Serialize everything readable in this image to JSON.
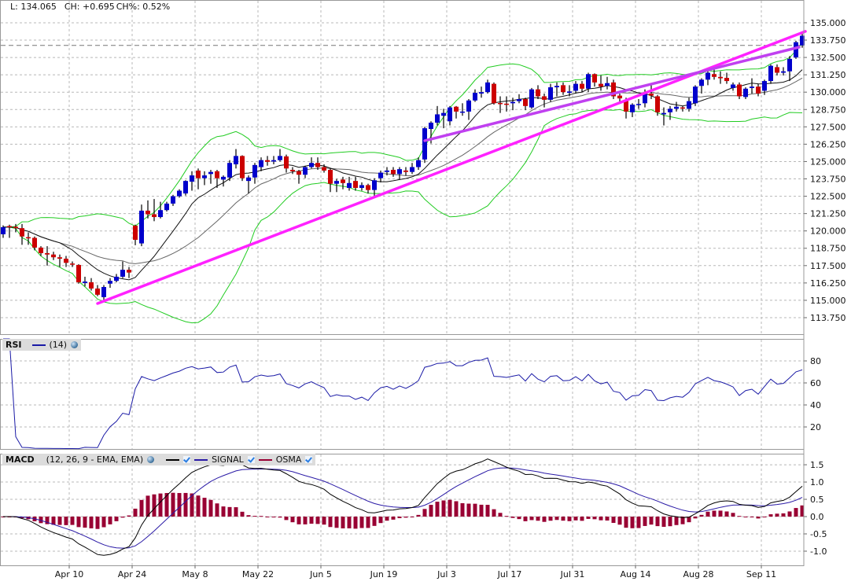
{
  "header": {
    "last": "L: 134.065",
    "change": "CH: +0.695",
    "change_pct": "CH%: 0.52%"
  },
  "rsi_legend": {
    "name": "RSI",
    "params": "(14)"
  },
  "macd_legend": {
    "name": "MACD",
    "params": "(12, 26, 9 - EMA, EMA)",
    "signal": "SIGNAL",
    "osma": "OSMA"
  },
  "colors": {
    "up": "#0000cc",
    "down": "#cc0000",
    "wick": "#000000",
    "bollinger": "#22cc22",
    "sma_fast": "#111111",
    "sma_slow": "#666666",
    "trendline_1": "#ff22ff",
    "trendline_2": "#c040f0",
    "rsi": "#1a1aa6",
    "macd": "#000000",
    "signal": "#2a1aa6",
    "osma": "#990033",
    "grid": "#b8b8b8",
    "frame": "#999999"
  },
  "chart_data": [
    {
      "type": "candlestick",
      "title": "",
      "x_ticks": [
        {
          "label": "Apr 10",
          "index": 10
        },
        {
          "label": "Apr 24",
          "index": 20
        },
        {
          "label": "May 8",
          "index": 30
        },
        {
          "label": "May 22",
          "index": 40
        },
        {
          "label": "Jun 5",
          "index": 50
        },
        {
          "label": "Jun 19",
          "index": 60
        },
        {
          "label": "Jul 3",
          "index": 70
        },
        {
          "label": "Jul 17",
          "index": 80
        },
        {
          "label": "Jul 31",
          "index": 90
        },
        {
          "label": "Aug 14",
          "index": 100
        },
        {
          "label": "Aug 28",
          "index": 110
        },
        {
          "label": "Sep 11",
          "index": 120
        }
      ],
      "y_ticks": [
        "135.000",
        "133.750",
        "132.500",
        "131.250",
        "130.000",
        "128.750",
        "127.500",
        "126.250",
        "125.000",
        "123.750",
        "122.500",
        "121.250",
        "120.000",
        "118.750",
        "117.500",
        "116.250",
        "115.000",
        "113.750"
      ],
      "ylim": [
        112.56,
        136.64
      ],
      "grid": true,
      "previous_close": 133.37,
      "overlays": [
        {
          "type": "bollinger",
          "period": 20,
          "k": 2
        },
        {
          "type": "sma",
          "period": 10
        },
        {
          "type": "sma",
          "period": 20
        }
      ],
      "trendlines": [
        {
          "from": {
            "index": 15,
            "price": 114.77
          },
          "to": {
            "index": 127.5,
            "price": 134.38
          }
        },
        {
          "from": {
            "index": 67,
            "price": 126.5
          },
          "to": {
            "index": 126.5,
            "price": 133.24
          }
        }
      ],
      "ohlc_fields": [
        "open",
        "high",
        "low",
        "close"
      ],
      "ohlc": [
        [
          119.76,
          120.4,
          119.5,
          120.27
        ],
        [
          120.35,
          120.45,
          119.5,
          120.28
        ],
        [
          120.3,
          120.5,
          119.9,
          120.2
        ],
        [
          120.2,
          120.5,
          119.0,
          119.6
        ],
        [
          119.55,
          119.9,
          119.0,
          119.5
        ],
        [
          119.5,
          119.6,
          118.6,
          118.8
        ],
        [
          118.8,
          118.9,
          118.2,
          118.4
        ],
        [
          118.4,
          118.9,
          117.5,
          118.3
        ],
        [
          118.3,
          118.5,
          117.9,
          118.1
        ],
        [
          118.1,
          118.3,
          117.4,
          118.0
        ],
        [
          118.0,
          118.2,
          117.4,
          117.7
        ],
        [
          117.65,
          117.8,
          117.4,
          117.6
        ],
        [
          117.55,
          117.6,
          116.2,
          116.3
        ],
        [
          116.25,
          116.7,
          116.0,
          116.35
        ],
        [
          116.3,
          116.6,
          115.7,
          115.85
        ],
        [
          115.85,
          116.1,
          115.3,
          115.4
        ],
        [
          115.23,
          116.1,
          115.0,
          115.96
        ],
        [
          116.2,
          116.6,
          115.9,
          116.4
        ],
        [
          116.4,
          116.9,
          116.3,
          116.7
        ],
        [
          116.7,
          117.8,
          116.6,
          117.2
        ],
        [
          117.2,
          117.4,
          116.6,
          117.0
        ],
        [
          120.38,
          120.45,
          118.97,
          119.36
        ],
        [
          119.1,
          121.9,
          118.9,
          121.46
        ],
        [
          121.46,
          122.2,
          120.9,
          121.2
        ],
        [
          121.2,
          122.3,
          120.7,
          121.0
        ],
        [
          121.0,
          122.1,
          120.9,
          121.5
        ],
        [
          121.5,
          122.1,
          121.4,
          121.97
        ],
        [
          121.97,
          122.6,
          121.8,
          122.5
        ],
        [
          122.5,
          123.0,
          122.4,
          122.9
        ],
        [
          122.7,
          123.65,
          122.55,
          123.6
        ],
        [
          123.55,
          124.3,
          122.9,
          124.0
        ],
        [
          124.35,
          124.5,
          123.0,
          123.8
        ],
        [
          123.8,
          124.3,
          123.3,
          124.0
        ],
        [
          124.1,
          124.4,
          123.4,
          124.25
        ],
        [
          124.3,
          124.4,
          123.1,
          123.8
        ],
        [
          123.7,
          124.0,
          123.2,
          123.9
        ],
        [
          123.85,
          125.1,
          123.6,
          124.9
        ],
        [
          124.8,
          125.9,
          124.5,
          125.4
        ],
        [
          125.4,
          125.45,
          123.6,
          123.8
        ],
        [
          123.6,
          124.0,
          122.7,
          123.85
        ],
        [
          123.85,
          124.9,
          123.4,
          124.75
        ],
        [
          124.6,
          125.3,
          124.3,
          125.1
        ],
        [
          125.1,
          125.4,
          124.7,
          124.98
        ],
        [
          125.0,
          125.4,
          124.8,
          125.1
        ],
        [
          125.1,
          125.9,
          125.0,
          125.4
        ],
        [
          125.37,
          125.5,
          124.2,
          124.5
        ],
        [
          124.4,
          124.6,
          124.1,
          124.3
        ],
        [
          124.3,
          124.4,
          123.4,
          124.05
        ],
        [
          124.05,
          124.7,
          123.8,
          124.6
        ],
        [
          124.6,
          125.3,
          124.5,
          124.9
        ],
        [
          124.9,
          125.3,
          124.4,
          124.6
        ],
        [
          124.6,
          124.8,
          124.2,
          124.35
        ],
        [
          124.4,
          124.5,
          122.8,
          123.4
        ],
        [
          123.4,
          123.75,
          122.8,
          123.6
        ],
        [
          123.7,
          123.9,
          123.0,
          123.45
        ],
        [
          123.1,
          123.9,
          122.9,
          123.45
        ],
        [
          123.6,
          123.9,
          122.9,
          123.1
        ],
        [
          123.1,
          123.5,
          122.9,
          123.3
        ],
        [
          123.3,
          123.4,
          122.7,
          122.95
        ],
        [
          122.95,
          123.8,
          122.5,
          123.65
        ],
        [
          123.8,
          124.35,
          123.5,
          124.2
        ],
        [
          124.25,
          124.6,
          124.0,
          124.35
        ],
        [
          124.4,
          124.6,
          123.9,
          124.1
        ],
        [
          124.1,
          124.6,
          123.7,
          124.45
        ],
        [
          124.35,
          124.6,
          124.0,
          124.25
        ],
        [
          124.25,
          124.9,
          124.1,
          124.6
        ],
        [
          124.6,
          125.3,
          124.4,
          125.1
        ],
        [
          125.15,
          127.5,
          124.9,
          127.4
        ],
        [
          127.35,
          127.9,
          126.3,
          127.8
        ],
        [
          127.8,
          129.0,
          127.6,
          128.4
        ],
        [
          128.3,
          128.8,
          127.4,
          128.5
        ],
        [
          127.9,
          129.0,
          127.6,
          128.9
        ],
        [
          128.95,
          129.0,
          128.1,
          128.6
        ],
        [
          128.55,
          129.2,
          128.3,
          128.6
        ],
        [
          128.6,
          129.5,
          128.0,
          129.4
        ],
        [
          129.4,
          130.2,
          129.3,
          129.95
        ],
        [
          129.9,
          130.4,
          129.6,
          130.0
        ],
        [
          130.0,
          130.9,
          129.9,
          130.7
        ],
        [
          130.6,
          130.7,
          129.1,
          129.2
        ],
        [
          129.22,
          129.7,
          128.5,
          129.17
        ],
        [
          129.17,
          129.7,
          128.6,
          129.1
        ],
        [
          129.2,
          129.6,
          128.7,
          129.3
        ],
        [
          129.35,
          129.85,
          129.2,
          129.5
        ],
        [
          129.5,
          129.6,
          128.7,
          129.0
        ],
        [
          128.9,
          130.3,
          128.8,
          130.2
        ],
        [
          130.2,
          130.5,
          129.5,
          129.7
        ],
        [
          129.7,
          129.9,
          128.9,
          129.45
        ],
        [
          129.45,
          130.6,
          129.3,
          130.35
        ],
        [
          130.35,
          130.7,
          129.7,
          130.45
        ],
        [
          130.5,
          130.7,
          129.8,
          130.0
        ],
        [
          129.95,
          130.5,
          129.7,
          130.05
        ],
        [
          130.1,
          130.8,
          129.9,
          130.6
        ],
        [
          130.6,
          130.8,
          130.0,
          130.25
        ],
        [
          130.25,
          131.4,
          130.0,
          131.3
        ],
        [
          131.3,
          131.35,
          130.4,
          130.7
        ],
        [
          130.6,
          131.2,
          130.1,
          130.4
        ],
        [
          130.45,
          131.1,
          130.2,
          130.65
        ],
        [
          130.7,
          130.9,
          129.5,
          129.7
        ],
        [
          129.75,
          129.9,
          129.2,
          129.55
        ],
        [
          129.4,
          129.6,
          128.1,
          128.6
        ],
        [
          128.55,
          129.2,
          128.2,
          129.1
        ],
        [
          129.1,
          129.5,
          128.8,
          129.15
        ],
        [
          129.2,
          130.2,
          128.9,
          129.85
        ],
        [
          129.9,
          130.5,
          129.5,
          129.75
        ],
        [
          129.7,
          129.8,
          128.3,
          128.55
        ],
        [
          128.4,
          128.9,
          127.6,
          128.5
        ],
        [
          128.55,
          129.0,
          128.0,
          128.8
        ],
        [
          128.8,
          129.3,
          128.6,
          128.95
        ],
        [
          128.9,
          129.0,
          128.6,
          128.85
        ],
        [
          128.8,
          129.6,
          128.6,
          129.35
        ],
        [
          129.2,
          130.5,
          129.0,
          130.4
        ],
        [
          130.45,
          131.0,
          129.9,
          130.9
        ],
        [
          130.9,
          131.6,
          130.5,
          131.4
        ],
        [
          131.3,
          131.7,
          130.9,
          131.1
        ],
        [
          131.1,
          131.5,
          130.6,
          131.0
        ],
        [
          131.03,
          131.4,
          130.6,
          130.8
        ],
        [
          130.3,
          130.7,
          130.1,
          130.55
        ],
        [
          130.55,
          130.7,
          129.5,
          129.7
        ],
        [
          129.65,
          130.35,
          129.5,
          130.25
        ],
        [
          130.3,
          131.0,
          129.9,
          130.4
        ],
        [
          130.4,
          130.6,
          129.7,
          129.9
        ],
        [
          130.1,
          130.9,
          129.8,
          130.8
        ],
        [
          130.8,
          132.0,
          130.6,
          131.9
        ],
        [
          131.8,
          132.0,
          131.2,
          131.4
        ],
        [
          131.4,
          131.8,
          131.2,
          131.5
        ],
        [
          131.5,
          132.6,
          130.8,
          132.4
        ],
        [
          132.5,
          133.7,
          132.4,
          133.6
        ],
        [
          133.37,
          134.2,
          133.2,
          134.065
        ]
      ]
    },
    {
      "type": "line",
      "indicator": "RSI",
      "period": 14,
      "y_ticks": [
        "80",
        "60",
        "40",
        "20"
      ],
      "ylim": [
        0,
        100
      ],
      "grid": true
    },
    {
      "type": "line+bar",
      "indicator": "MACD",
      "params": [
        12,
        26,
        9
      ],
      "series": [
        "MACD",
        "SIGNAL",
        "OSMA"
      ],
      "y_ticks": [
        "1.5",
        "1.0",
        "0.5",
        "0.0",
        "-0.5",
        "-1.0"
      ],
      "ylim": [
        -1.41,
        1.82
      ],
      "grid": true
    }
  ]
}
